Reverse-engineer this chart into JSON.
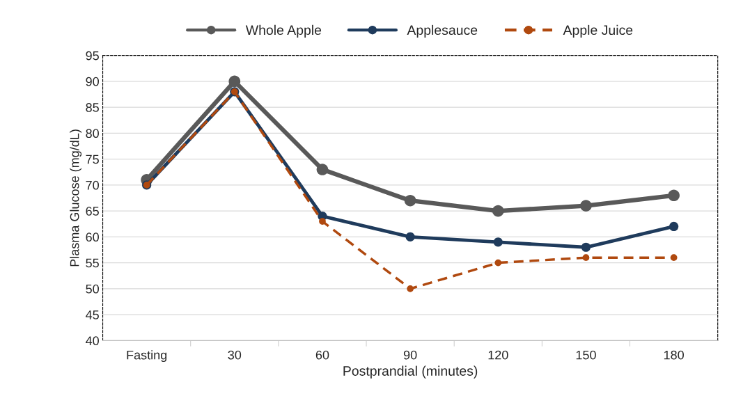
{
  "chart_data": {
    "type": "line",
    "xlabel": "Postprandial (minutes)",
    "ylabel": "Plasma Glucose (mg/dL)",
    "categories": [
      "Fasting",
      "30",
      "60",
      "90",
      "120",
      "150",
      "180"
    ],
    "series": [
      {
        "name": "Whole Apple",
        "color": "#595959",
        "values": [
          71,
          90,
          73,
          67,
          65,
          66,
          68
        ],
        "line_style": "solid"
      },
      {
        "name": "Applesauce",
        "color": "#1f3b5c",
        "values": [
          70,
          88,
          64,
          60,
          59,
          58,
          62
        ],
        "line_style": "solid"
      },
      {
        "name": "Apple Juice",
        "color": "#b0490f",
        "values": [
          70,
          88,
          63,
          50,
          55,
          56,
          56
        ],
        "line_style": "dashed"
      }
    ],
    "ylim": [
      40,
      95
    ],
    "yticks": [
      40,
      45,
      50,
      55,
      60,
      65,
      70,
      75,
      80,
      85,
      90,
      95
    ],
    "grid": "y",
    "legend": "top",
    "marker": "circle"
  }
}
